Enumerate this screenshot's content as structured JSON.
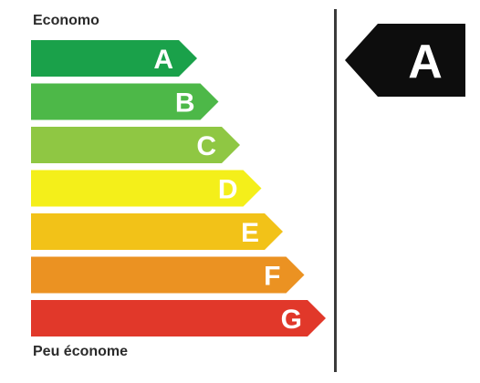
{
  "labels": {
    "top": "Economo",
    "bottom": "Peu économe"
  },
  "bands": [
    {
      "letter": "A",
      "color": "#1aa14a"
    },
    {
      "letter": "B",
      "color": "#4db848"
    },
    {
      "letter": "C",
      "color": "#8fc743"
    },
    {
      "letter": "D",
      "color": "#f4ef1a"
    },
    {
      "letter": "E",
      "color": "#f2c218"
    },
    {
      "letter": "F",
      "color": "#eb9222"
    },
    {
      "letter": "G",
      "color": "#e1382a"
    }
  ],
  "indicator": {
    "letter": "A",
    "color": "#0d0d0d"
  }
}
